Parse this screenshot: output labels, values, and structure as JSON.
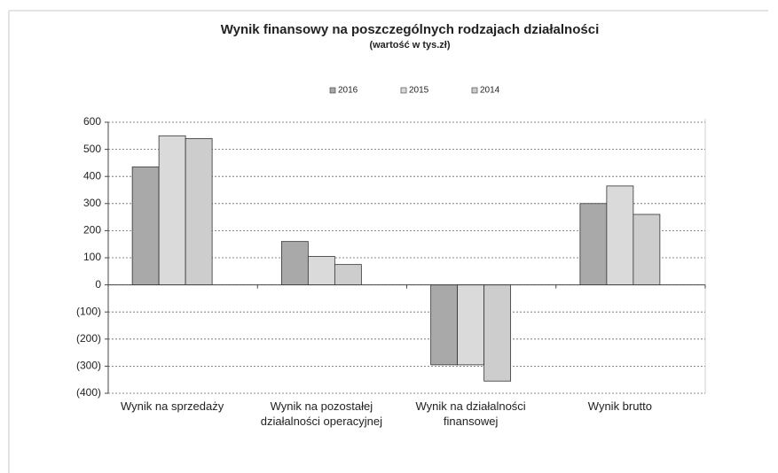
{
  "chart_data": {
    "type": "bar",
    "title": "Wynik finansowy na poszczególnych rodzajach działalności",
    "subtitle": "(wartość w tys.zł)",
    "categories": [
      "Wynik na sprzedaży",
      "Wynik na pozostałej działalności operacyjnej",
      "Wynik na działalności finansowej",
      "Wynik brutto"
    ],
    "series": [
      {
        "name": "2016",
        "color": "#a9a9a9",
        "values": [
          435,
          160,
          -295,
          300
        ]
      },
      {
        "name": "2015",
        "color": "#dadada",
        "values": [
          550,
          105,
          -295,
          365
        ]
      },
      {
        "name": "2014",
        "color": "#cdcdcd",
        "values": [
          540,
          75,
          -355,
          260
        ]
      }
    ],
    "ylim": [
      -400,
      600
    ],
    "yticks": [
      {
        "value": -400,
        "label": "(400)"
      },
      {
        "value": -300,
        "label": "(300)"
      },
      {
        "value": -200,
        "label": "(200)"
      },
      {
        "value": -100,
        "label": "(100)"
      },
      0,
      100,
      200,
      300,
      400,
      500,
      600
    ],
    "grid": true,
    "legend": "top"
  }
}
